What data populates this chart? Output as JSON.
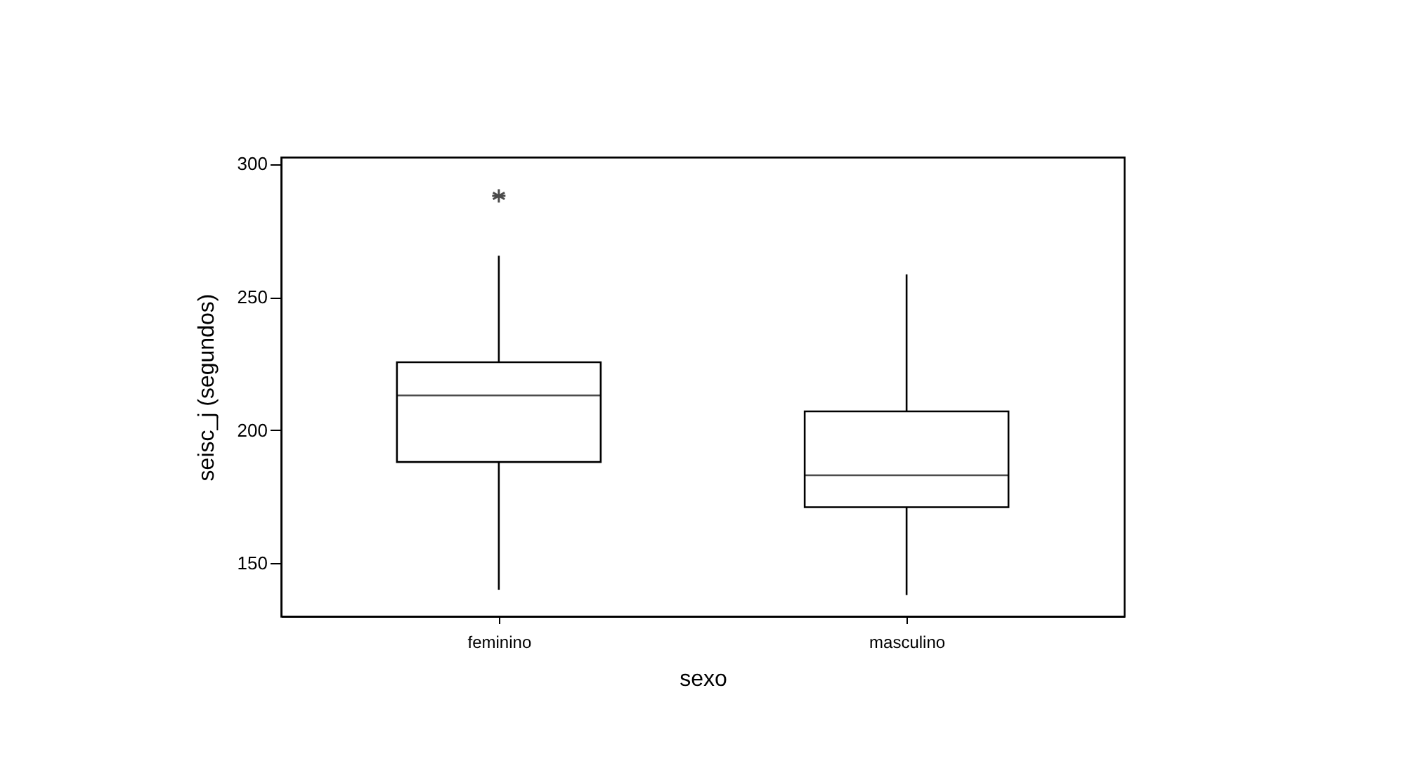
{
  "chart_data": {
    "type": "box",
    "xlabel": "sexo",
    "ylabel": "seisc_j (segundos)",
    "categories": [
      "feminino",
      "masculino"
    ],
    "boxes": [
      {
        "low": 140,
        "q1": 188,
        "median": 213,
        "q3": 225.5,
        "high": 265.5,
        "outliers": [
          288
        ]
      },
      {
        "low": 138,
        "q1": 171,
        "median": 183,
        "q3": 207,
        "high": 258.5
      }
    ],
    "color": "#ffffff",
    "ylim": [
      130,
      302.5
    ],
    "yticks": [
      150,
      200,
      250,
      300
    ],
    "grid": false,
    "marker": "star"
  }
}
